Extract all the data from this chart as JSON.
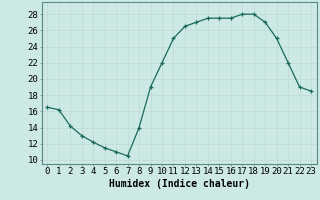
{
  "x": [
    0,
    1,
    2,
    3,
    4,
    5,
    6,
    7,
    8,
    9,
    10,
    11,
    12,
    13,
    14,
    15,
    16,
    17,
    18,
    19,
    20,
    21,
    22,
    23
  ],
  "y": [
    16.5,
    16.2,
    14.2,
    13.0,
    12.2,
    11.5,
    11.0,
    10.5,
    14.0,
    19.0,
    22.0,
    25.0,
    26.5,
    27.0,
    27.5,
    27.5,
    27.5,
    28.0,
    28.0,
    27.0,
    25.0,
    22.0,
    19.0,
    18.5
  ],
  "line_color": "#1a6b5a",
  "marker": "+",
  "marker_color": "#1a6b5a",
  "bg_color": "#cce9e5",
  "grid_color": "#c0d8d4",
  "xlabel": "Humidex (Indice chaleur)",
  "ylabel_ticks": [
    10,
    12,
    14,
    16,
    18,
    20,
    22,
    24,
    26,
    28
  ],
  "xlim": [
    -0.5,
    23.5
  ],
  "ylim": [
    9.5,
    29.5
  ],
  "xtick_labels": [
    "0",
    "1",
    "2",
    "3",
    "4",
    "5",
    "6",
    "7",
    "8",
    "9",
    "10",
    "11",
    "12",
    "13",
    "14",
    "15",
    "16",
    "17",
    "18",
    "19",
    "20",
    "21",
    "22",
    "23"
  ],
  "axis_label_fontsize": 7,
  "tick_fontsize": 6.5
}
